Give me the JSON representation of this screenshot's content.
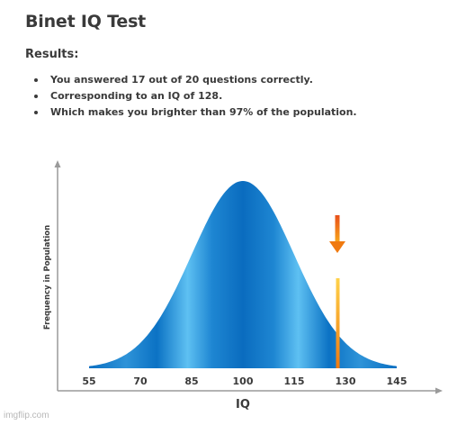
{
  "page": {
    "title": "Binet IQ Test",
    "results_heading": "Results:",
    "results": [
      "You answered 17 out of 20 questions correctly.",
      "Corresponding to an IQ of 128.",
      "Which makes you brighter than 97% of the population."
    ]
  },
  "chart_data": {
    "type": "area",
    "title": "",
    "xlabel": "IQ",
    "ylabel": "Frequency in Population",
    "x_ticks": [
      55,
      70,
      85,
      100,
      115,
      130,
      145
    ],
    "xlim": [
      55,
      145
    ],
    "distribution": {
      "mean": 100,
      "sd": 15
    },
    "marker": {
      "value": 128
    },
    "grid": false
  },
  "colors": {
    "curve_dark": "#0a6fc2",
    "curve_light": "#5ec0f2",
    "axis": "#9a9a9a",
    "arrow": "#f07a10",
    "marker_line": "#f5a21a"
  },
  "watermark": "imgflip.com"
}
